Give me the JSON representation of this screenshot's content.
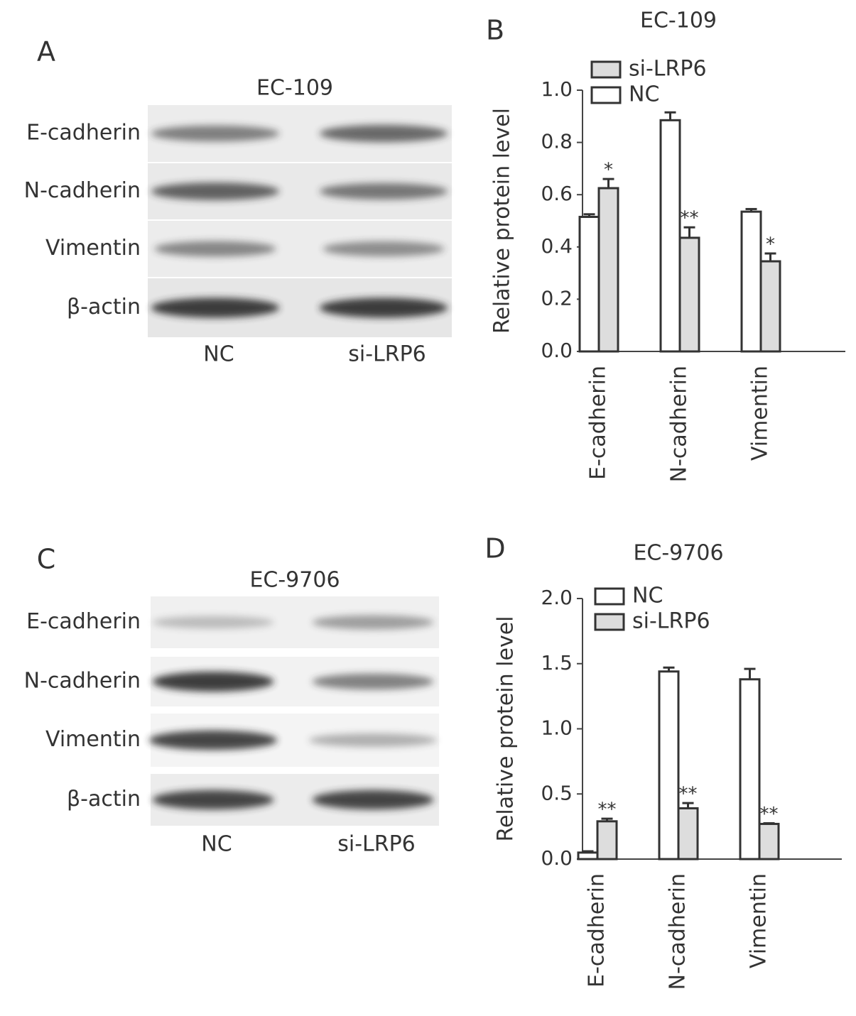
{
  "blots": [
    {
      "panel_label": "A",
      "title": "EC-109",
      "rows": [
        "E-cadherin",
        "N-cadherin",
        "Vimentin",
        "β-actin"
      ],
      "lanes": [
        "NC",
        "si-LRP6"
      ]
    },
    {
      "panel_label": "C",
      "title": "EC-9706",
      "rows": [
        "E-cadherin",
        "N-cadherin",
        "Vimentin",
        "β-actin"
      ],
      "lanes": [
        "NC",
        "si-LRP6"
      ]
    }
  ],
  "chart_data": [
    {
      "type": "bar",
      "panel_label": "B",
      "title": "EC-109",
      "y_label": "Relative protein level",
      "categories": [
        "E-cadherin",
        "N-cadherin",
        "Vimentin"
      ],
      "series": [
        {
          "name": "NC",
          "color": "#ffffff",
          "values": [
            0.515,
            0.885,
            0.535
          ],
          "errors": [
            0.01,
            0.03,
            0.01
          ],
          "annotations": [
            null,
            null,
            null
          ]
        },
        {
          "name": "si-LRP6",
          "color": "#dddddd",
          "values": [
            0.625,
            0.435,
            0.345
          ],
          "errors": [
            0.035,
            0.04,
            0.03
          ],
          "annotations": [
            "*",
            "**",
            "*"
          ]
        }
      ],
      "legend_reverse": true,
      "ylim": [
        0,
        1.0
      ],
      "yticks": [
        {
          "value": 0,
          "label": "0.0"
        },
        0.2,
        0.4,
        0.6,
        0.8,
        {
          "value": 1.0,
          "label": "1.0"
        }
      ]
    },
    {
      "type": "bar",
      "panel_label": "D",
      "title": "EC-9706",
      "y_label": "Relative protein level",
      "categories": [
        "E-cadherin",
        "N-cadherin",
        "Vimentin"
      ],
      "series": [
        {
          "name": "NC",
          "color": "#ffffff",
          "values": [
            0.05,
            1.44,
            1.38
          ],
          "errors": [
            0.01,
            0.03,
            0.08
          ],
          "annotations": [
            null,
            null,
            null
          ]
        },
        {
          "name": "si-LRP6",
          "color": "#dddddd",
          "values": [
            0.29,
            0.39,
            0.27
          ],
          "errors": [
            0.02,
            0.04,
            0.005
          ],
          "annotations": [
            "**",
            "**",
            "**"
          ]
        }
      ],
      "legend_reverse": false,
      "ylim": [
        0,
        2.0
      ],
      "yticks": [
        {
          "value": 0,
          "label": "0.0"
        },
        0.5,
        {
          "value": 1.0,
          "label": "1.0"
        },
        1.5,
        {
          "value": 2.0,
          "label": "2.0"
        }
      ]
    }
  ]
}
